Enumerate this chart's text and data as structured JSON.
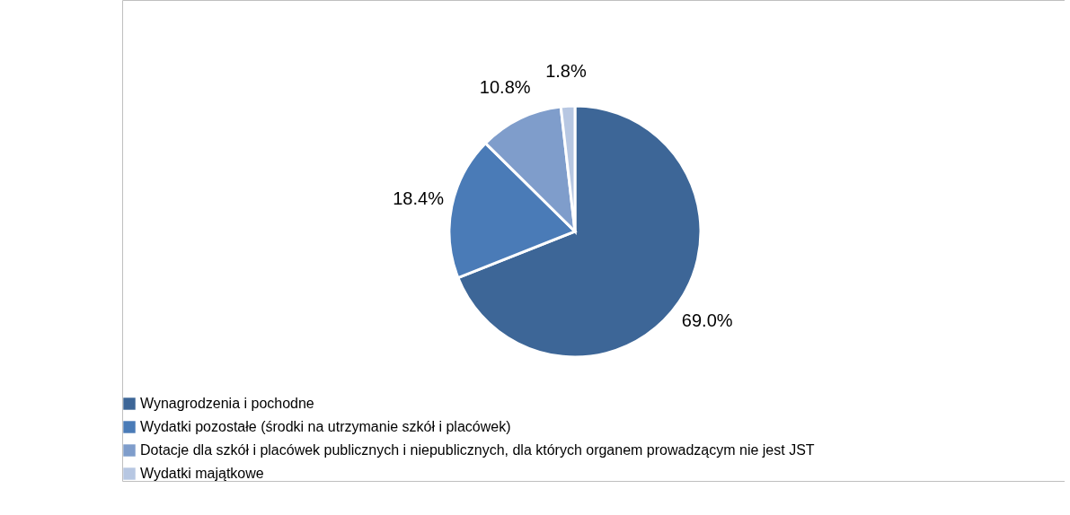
{
  "chart_data": {
    "type": "pie",
    "categories": [
      "Wynagrodzenia i pochodne",
      "Wydatki pozostałe (środki na utrzymanie szkół i placówek)",
      "Dotacje dla szkół i placówek publicznych i niepublicznych, dla których organem prowadzącym nie jest JST",
      "Wydatki majątkowe"
    ],
    "values": [
      69.0,
      18.4,
      10.8,
      1.8
    ],
    "value_labels": [
      "69.0%",
      "18.4%",
      "10.8%",
      "1.8%"
    ],
    "colors": [
      "#3d6697",
      "#4a7bb7",
      "#7f9dcb",
      "#b7c7e2"
    ],
    "legend": "bottom left"
  }
}
